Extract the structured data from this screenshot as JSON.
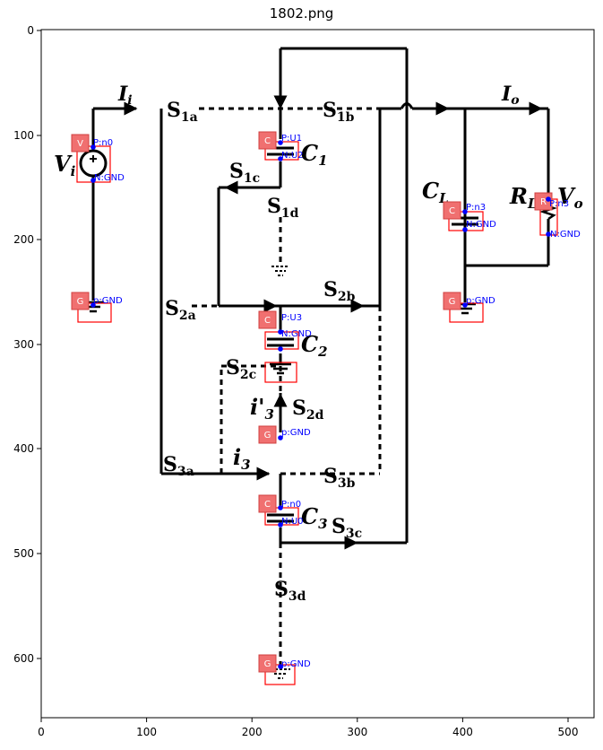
{
  "title": "1802.png",
  "axes": {
    "x_ticks": [
      "0",
      "100",
      "200",
      "300",
      "400",
      "500"
    ],
    "y_ticks": [
      "0",
      "100",
      "200",
      "300",
      "400",
      "500",
      "600"
    ]
  },
  "labels": {
    "Ii": "I",
    "Ii_sub": "i",
    "Io": "I",
    "Io_sub": "o",
    "Vi": "V",
    "Vi_sub": "i",
    "Vo": "V",
    "Vo_sub": "o",
    "C1": "C",
    "C1_sub": "1",
    "C2": "C",
    "C2_sub": "2",
    "C3": "C",
    "C3_sub": "3",
    "CL": "C",
    "CL_sub": "L",
    "RL": "R",
    "RL_sub": "L",
    "i3": "i",
    "i3_sub": "3",
    "i3p": "i'",
    "i3p_sub": "3",
    "S1a": "S",
    "S1a_sub": "1a",
    "S1b": "S",
    "S1b_sub": "1b",
    "S1c": "S",
    "S1c_sub": "1c",
    "S1d": "S",
    "S1d_sub": "1d",
    "S2a": "S",
    "S2a_sub": "2a",
    "S2b": "S",
    "S2b_sub": "2b",
    "S2c": "S",
    "S2c_sub": "2c",
    "S2d": "S",
    "S2d_sub": "2d",
    "S3a": "S",
    "S3a_sub": "3a",
    "S3b": "S",
    "S3b_sub": "3b",
    "S3c": "S",
    "S3c_sub": "3c",
    "S3d": "S",
    "S3d_sub": "3d"
  },
  "annotations": {
    "V_badge": "V",
    "V_p": "P:n0",
    "V_n": "N:GND",
    "G1_badge": "G",
    "G1_p": "p:GND",
    "C1_badge": "C",
    "C1_p": "P:U1",
    "C1_n": "N:U2",
    "C2_badge": "C",
    "C2_p": "P:U3",
    "C2_n": "N:GND",
    "G2_badge": "G",
    "G2_p": "p:GND",
    "C3_badge": "C",
    "C3_p": "P:n0",
    "C3_n": "N:U0",
    "G3_badge": "G",
    "G3_p": "p:GND",
    "CL_badge": "C",
    "CL_p": "P:n3",
    "CL_n": "N:GND",
    "G4_badge": "G",
    "G4_p": "p:GND",
    "R_badge": "R",
    "R_p": "P:n3",
    "R_n": "N:GND"
  }
}
